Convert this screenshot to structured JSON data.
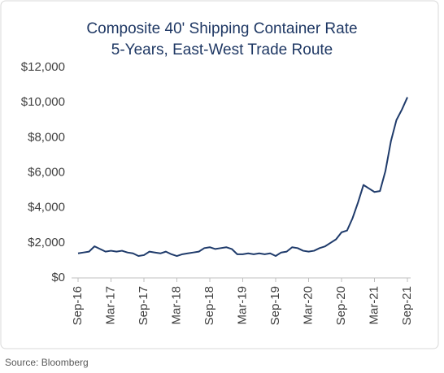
{
  "chart_data": {
    "type": "line",
    "title": "Composite 40' Shipping Container Rate",
    "subtitle": "5-Years, East-West Trade Route",
    "source": "Source: Bloomberg",
    "categories": [
      "Sep-16",
      null,
      null,
      null,
      null,
      null,
      "Mar-17",
      null,
      null,
      null,
      null,
      null,
      "Sep-17",
      null,
      null,
      null,
      null,
      null,
      "Mar-18",
      null,
      null,
      null,
      null,
      null,
      "Sep-18",
      null,
      null,
      null,
      null,
      null,
      "Mar-19",
      null,
      null,
      null,
      null,
      null,
      "Sep-19",
      null,
      null,
      null,
      null,
      null,
      "Mar-20",
      null,
      null,
      null,
      null,
      null,
      "Sep-20",
      null,
      null,
      null,
      null,
      null,
      "Mar-21",
      null,
      null,
      null,
      null,
      null,
      "Sep-21"
    ],
    "series": [
      {
        "name": "Composite 40' Shipping Container Rate",
        "color": "#1f3b6b",
        "values": [
          1400,
          1450,
          1500,
          1800,
          1650,
          1500,
          1550,
          1500,
          1550,
          1450,
          1400,
          1250,
          1300,
          1500,
          1450,
          1400,
          1500,
          1350,
          1250,
          1350,
          1400,
          1450,
          1500,
          1700,
          1750,
          1650,
          1700,
          1750,
          1650,
          1350,
          1350,
          1400,
          1350,
          1400,
          1350,
          1400,
          1250,
          1450,
          1500,
          1750,
          1700,
          1550,
          1500,
          1550,
          1700,
          1800,
          2000,
          2200,
          2600,
          2700,
          3400,
          4300,
          5300,
          5100,
          4900,
          4950,
          6100,
          7800,
          9000,
          9600,
          10300
        ]
      }
    ],
    "ylim": [
      0,
      12000
    ],
    "yticks": [
      {
        "value": 0,
        "label": "$0"
      },
      {
        "value": 2000,
        "label": "$2,000"
      },
      {
        "value": 4000,
        "label": "$4,000"
      },
      {
        "value": 6000,
        "label": "$6,000"
      },
      {
        "value": 8000,
        "label": "$8,000"
      },
      {
        "value": 10000,
        "label": "$10,000"
      },
      {
        "value": 12000,
        "label": "$12,000"
      }
    ],
    "grid": false
  }
}
